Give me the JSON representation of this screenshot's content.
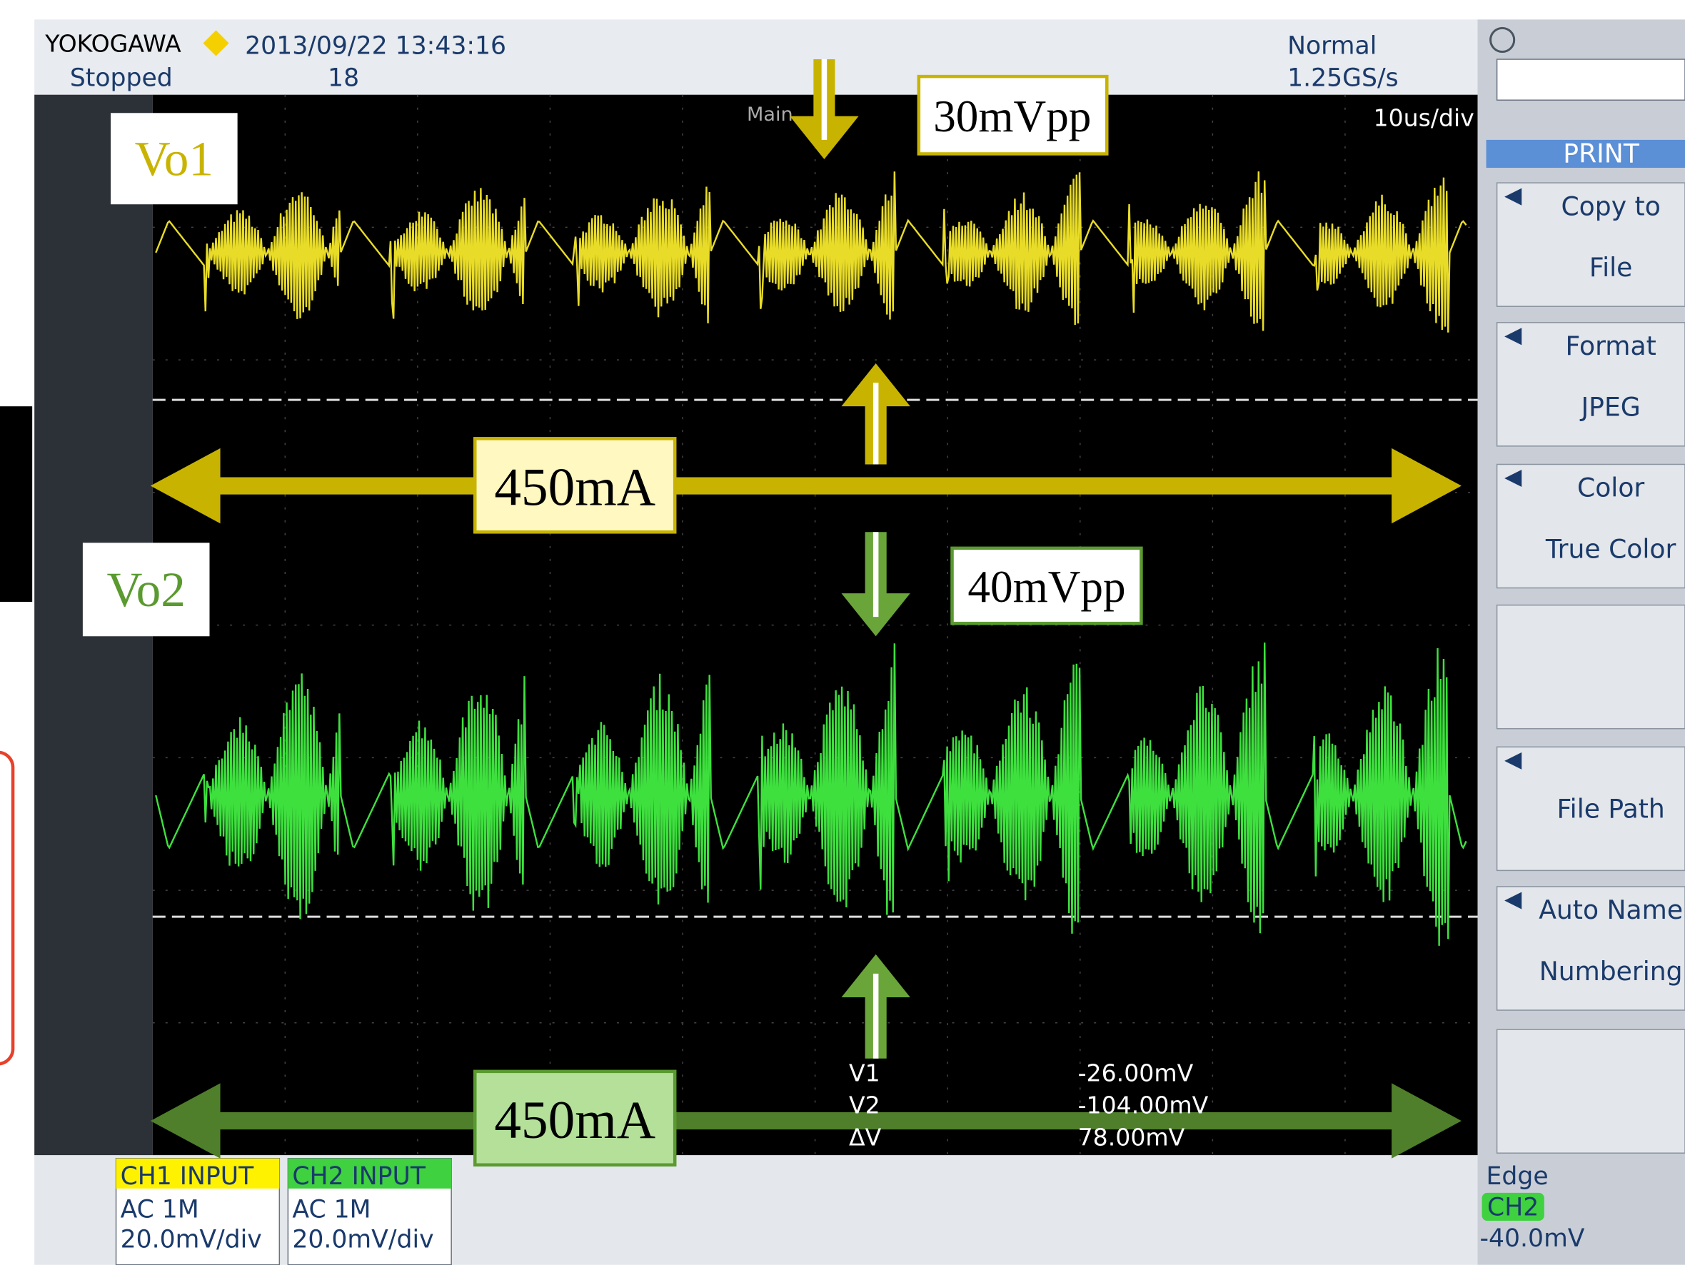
{
  "header": {
    "brand": "YOKOGAWA",
    "datetime": "2013/09/22 13:43:16",
    "status": "Stopped",
    "count": "18",
    "trigger_mode": "Normal",
    "sample_rate": "1.25GS/s"
  },
  "screen": {
    "main_label": "Main",
    "timebase": "10us/div"
  },
  "annotations": {
    "ch1_label": "Vo1",
    "ch1_ripple": "30mVpp",
    "ch1_current": "450mA",
    "ch2_label": "Vo2",
    "ch2_ripple": "40mVpp",
    "ch2_current": "450mA"
  },
  "cursors": {
    "rows": [
      [
        "V1",
        "-26.00mV"
      ],
      [
        "V2",
        "-104.00mV"
      ],
      [
        "ΔV",
        "78.00mV"
      ]
    ]
  },
  "channels": [
    {
      "title": "CH1 INPUT",
      "coupling": "AC 1M",
      "scale": "20.0mV/div"
    },
    {
      "title": "CH2 INPUT",
      "coupling": "AC 1M",
      "scale": "20.0mV/div"
    }
  ],
  "trigger": {
    "mode": "Edge",
    "source": "CH2",
    "level": "-40.0mV"
  },
  "menu": {
    "title": "PRINT",
    "items": [
      {
        "label": "Copy to",
        "value": "File"
      },
      {
        "label": "Format",
        "value": "JPEG"
      },
      {
        "label": "Color",
        "value": "True Color"
      },
      {
        "label": "File Path"
      },
      {
        "label": "Auto Name",
        "value": "Numbering"
      }
    ]
  }
}
